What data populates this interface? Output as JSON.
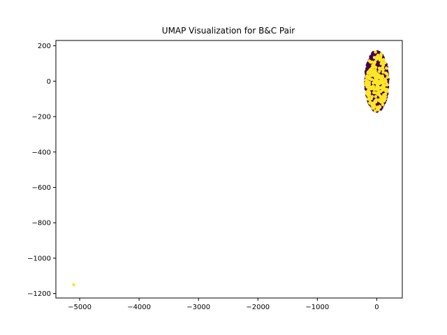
{
  "chart_data": {
    "type": "scatter",
    "title": "UMAP Visualization for B&C Pair",
    "xlabel": "",
    "ylabel": "",
    "xlim": [
      -5400,
      430
    ],
    "ylim": [
      -1225,
      230
    ],
    "x_ticks": [
      -5000,
      -4000,
      -3000,
      -2000,
      -1000,
      0
    ],
    "x_tick_labels": [
      "−5000",
      "−4000",
      "−3000",
      "−2000",
      "−1000",
      "0"
    ],
    "y_ticks": [
      200,
      0,
      -200,
      -400,
      -600,
      -800,
      -1000,
      -1200
    ],
    "y_tick_labels": [
      "200",
      "0",
      "−200",
      "−400",
      "−600",
      "−800",
      "−1000",
      "−1200"
    ],
    "grid": false,
    "legend": "none",
    "colors": {
      "class_0": "#440154",
      "class_1": "#fde725"
    },
    "cluster": {
      "center": [
        0,
        0
      ],
      "x_radius": 190,
      "y_radius": 170,
      "class_1_share": 0.2,
      "approx_points": 1200
    },
    "series": [
      {
        "points": [
          [
            -5100,
            -1150
          ]
        ],
        "color": "#fde725"
      }
    ]
  }
}
